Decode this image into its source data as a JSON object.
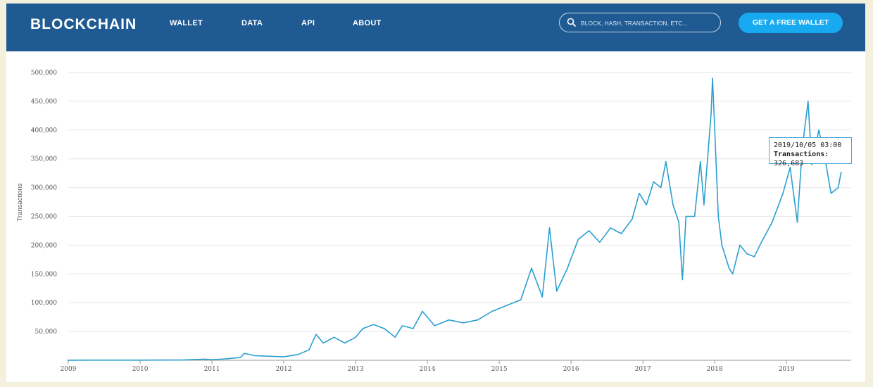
{
  "header": {
    "logo": "BLOCKCHAIN",
    "nav": [
      "WALLET",
      "DATA",
      "API",
      "ABOUT"
    ],
    "search_placeholder": "BLOCK, HASH, TRANSACTION, ETC...",
    "cta": "GET A FREE WALLET",
    "search_icon": "search-icon"
  },
  "colors": {
    "header_bg": "#1f5b92",
    "accent": "#18aaf0",
    "line": "#2a9fd0",
    "page_bg": "#f3f1dd"
  },
  "tooltip": {
    "date": "2019/10/05 03:00",
    "label": "Transactions:",
    "value": "326,683"
  },
  "chart_data": {
    "type": "line",
    "title": "",
    "xlabel": "",
    "ylabel": "Transactions",
    "ylim": [
      0,
      500000
    ],
    "xlim": [
      2009.0,
      2019.9
    ],
    "yticks": [
      50000,
      100000,
      150000,
      200000,
      250000,
      300000,
      350000,
      400000,
      450000,
      500000
    ],
    "ytick_labels": [
      "50,000",
      "100,000",
      "150,000",
      "200,000",
      "250,000",
      "300,000",
      "350,000",
      "400,000",
      "450,000",
      "500,000"
    ],
    "xticks": [
      "2009",
      "2010",
      "2011",
      "2012",
      "2013",
      "2014",
      "2015",
      "2016",
      "2017",
      "2018",
      "2019"
    ],
    "grid": true,
    "series": [
      {
        "values": [
          [
            2009.0,
            100
          ],
          [
            2009.5,
            200
          ],
          [
            2010.0,
            300
          ],
          [
            2010.3,
            400
          ],
          [
            2010.6,
            500
          ],
          [
            2010.9,
            2000
          ],
          [
            2011.0,
            1000
          ],
          [
            2011.2,
            2500
          ],
          [
            2011.4,
            5000
          ],
          [
            2011.45,
            12000
          ],
          [
            2011.6,
            8000
          ],
          [
            2011.8,
            7000
          ],
          [
            2012.0,
            6000
          ],
          [
            2012.2,
            10000
          ],
          [
            2012.35,
            18000
          ],
          [
            2012.45,
            45000
          ],
          [
            2012.55,
            30000
          ],
          [
            2012.7,
            40000
          ],
          [
            2012.85,
            30000
          ],
          [
            2013.0,
            40000
          ],
          [
            2013.1,
            55000
          ],
          [
            2013.25,
            62000
          ],
          [
            2013.4,
            55000
          ],
          [
            2013.55,
            40000
          ],
          [
            2013.65,
            60000
          ],
          [
            2013.8,
            55000
          ],
          [
            2013.93,
            85000
          ],
          [
            2014.1,
            60000
          ],
          [
            2014.3,
            70000
          ],
          [
            2014.5,
            65000
          ],
          [
            2014.7,
            70000
          ],
          [
            2014.9,
            85000
          ],
          [
            2015.1,
            95000
          ],
          [
            2015.3,
            105000
          ],
          [
            2015.45,
            160000
          ],
          [
            2015.6,
            110000
          ],
          [
            2015.7,
            230000
          ],
          [
            2015.8,
            120000
          ],
          [
            2015.95,
            160000
          ],
          [
            2016.1,
            210000
          ],
          [
            2016.25,
            225000
          ],
          [
            2016.4,
            205000
          ],
          [
            2016.55,
            230000
          ],
          [
            2016.7,
            220000
          ],
          [
            2016.85,
            245000
          ],
          [
            2016.95,
            290000
          ],
          [
            2017.05,
            270000
          ],
          [
            2017.15,
            310000
          ],
          [
            2017.25,
            300000
          ],
          [
            2017.32,
            345000
          ],
          [
            2017.42,
            270000
          ],
          [
            2017.5,
            240000
          ],
          [
            2017.55,
            140000
          ],
          [
            2017.6,
            250000
          ],
          [
            2017.72,
            250000
          ],
          [
            2017.8,
            345000
          ],
          [
            2017.85,
            270000
          ],
          [
            2017.95,
            430000
          ],
          [
            2017.97,
            490000
          ],
          [
            2018.0,
            400000
          ],
          [
            2018.05,
            250000
          ],
          [
            2018.1,
            200000
          ],
          [
            2018.2,
            160000
          ],
          [
            2018.25,
            150000
          ],
          [
            2018.35,
            200000
          ],
          [
            2018.45,
            185000
          ],
          [
            2018.55,
            180000
          ],
          [
            2018.65,
            205000
          ],
          [
            2018.8,
            240000
          ],
          [
            2018.95,
            290000
          ],
          [
            2019.05,
            335000
          ],
          [
            2019.15,
            240000
          ],
          [
            2019.22,
            370000
          ],
          [
            2019.3,
            450000
          ],
          [
            2019.35,
            340000
          ],
          [
            2019.45,
            400000
          ],
          [
            2019.55,
            340000
          ],
          [
            2019.62,
            290000
          ],
          [
            2019.72,
            300000
          ],
          [
            2019.76,
            326683
          ]
        ]
      }
    ]
  }
}
